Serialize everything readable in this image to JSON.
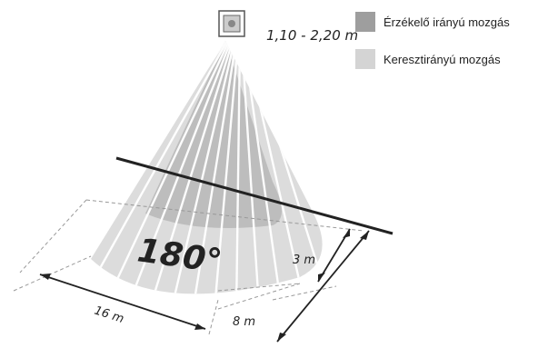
{
  "mount_height": "1,10 - 2,20 m",
  "angle": "180°",
  "dim_frontal": "3 m",
  "dim_depth": "8 m",
  "dim_width": "16 m",
  "legend": [
    {
      "label": "Érzékelő irányú mozgás",
      "color": "#9e9e9e"
    },
    {
      "label": "Keresztirányú mozgás",
      "color": "#d4d4d4"
    }
  ],
  "colors": {
    "line": "#222222",
    "fan": "#d9d9d9",
    "core": "#a8a8a8",
    "sensor_box": "#bbbbbb"
  },
  "icons": [
    "motion-sensor-icon"
  ]
}
